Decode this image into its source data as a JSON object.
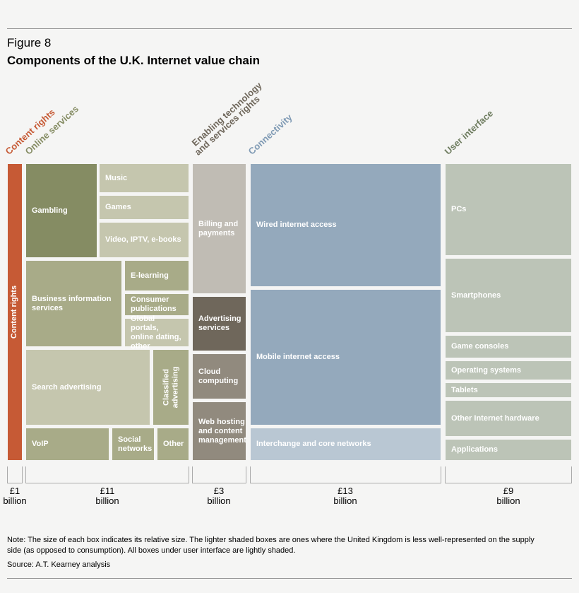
{
  "header": {
    "figure": "Figure 8",
    "title": "Components of the U.K. Internet value chain"
  },
  "columns": [
    {
      "label": [
        "Content rights"
      ],
      "total": [
        "£1",
        "billion"
      ],
      "boxes": [
        {
          "label": "Content rights"
        }
      ]
    },
    {
      "label": [
        "Online services"
      ],
      "total": [
        "£11",
        "billion"
      ],
      "boxes": [
        {
          "label": "Gambling"
        },
        {
          "label": "Music"
        },
        {
          "label": "Games"
        },
        {
          "label": "Video, IPTV, e-books"
        },
        {
          "label": "Business information services"
        },
        {
          "label": "E-learning"
        },
        {
          "label": "Consumer publications"
        },
        {
          "label": "Global portals, online dating, other"
        },
        {
          "label": "Search advertising"
        },
        {
          "label": "Classified advertising"
        },
        {
          "label": "VoIP"
        },
        {
          "label": "Social networks"
        },
        {
          "label": "Other"
        }
      ]
    },
    {
      "label": [
        "Enabling technology",
        "and services rights"
      ],
      "total": [
        "£3",
        "billion"
      ],
      "boxes": [
        {
          "label": "Billing and payments"
        },
        {
          "label": "Advertising services"
        },
        {
          "label": "Cloud computing"
        },
        {
          "label": "Web hosting and content management"
        }
      ]
    },
    {
      "label": [
        "Connectivity"
      ],
      "total": [
        "£13",
        "billion"
      ],
      "boxes": [
        {
          "label": "Wired internet access"
        },
        {
          "label": "Mobile internet access"
        },
        {
          "label": "Interchange and core networks"
        }
      ]
    },
    {
      "label": [
        "User interface"
      ],
      "total": [
        "£9",
        "billion"
      ],
      "boxes": [
        {
          "label": "PCs"
        },
        {
          "label": "Smartphones"
        },
        {
          "label": "Game consoles"
        },
        {
          "label": "Operating systems"
        },
        {
          "label": "Tablets"
        },
        {
          "label": "Other Internet hardware"
        },
        {
          "label": "Applications"
        }
      ]
    }
  ],
  "note": "Note: The size of each box indicates its relative size. The lighter shaded boxes are ones where the United Kingdom is less well-represented on the supply side (as opposed to consumption). All boxes under user interface are lightly shaded.",
  "source": "Source: A.T. Kearney analysis"
}
